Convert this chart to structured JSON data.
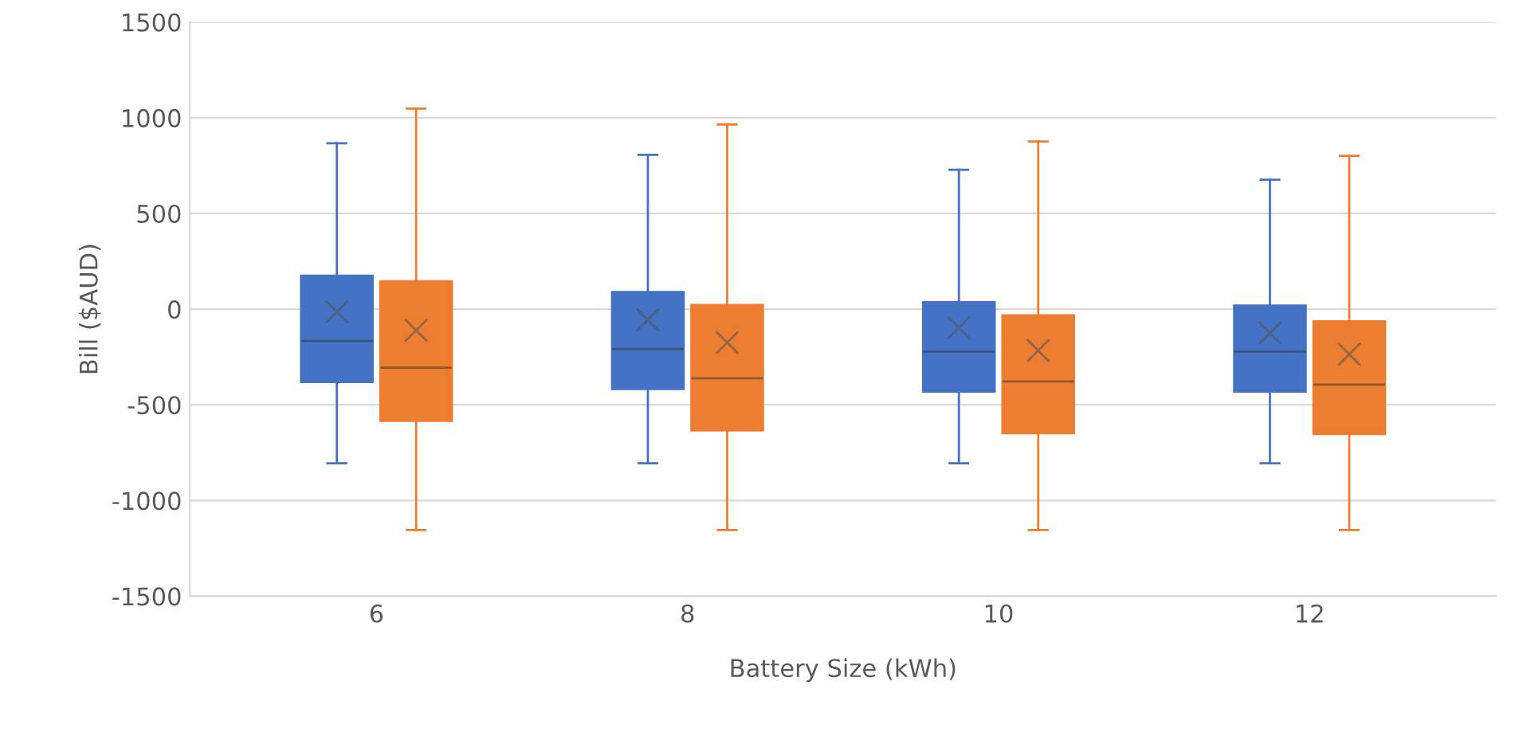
{
  "chart_data": {
    "type": "box",
    "xlabel": "Battery Size (kWh)",
    "ylabel": "Bill ($AUD)",
    "categories": [
      "6",
      "8",
      "10",
      "12"
    ],
    "ylim": [
      -1500,
      1500
    ],
    "yticks": [
      -1500,
      -1000,
      -500,
      0,
      500,
      1000,
      1500
    ],
    "grid": "y",
    "marker": "cross",
    "series": [
      {
        "color": "#4472c4",
        "boxes": [
          {
            "low": -806,
            "q1": -381,
            "median": -167,
            "q3": 175,
            "high": 867,
            "mean": -14
          },
          {
            "low": -806,
            "q1": -417,
            "median": -208,
            "q3": 89,
            "high": 806,
            "mean": -56
          },
          {
            "low": -806,
            "q1": -431,
            "median": -222,
            "q3": 36,
            "high": 728,
            "mean": -97
          },
          {
            "low": -806,
            "q1": -431,
            "median": -222,
            "q3": 19,
            "high": 676,
            "mean": -125
          }
        ]
      },
      {
        "color": "#ed7d31",
        "boxes": [
          {
            "low": -1154,
            "q1": -584,
            "median": -306,
            "q3": 145,
            "high": 1048,
            "mean": -111
          },
          {
            "low": -1154,
            "q1": -634,
            "median": -361,
            "q3": 22,
            "high": 965,
            "mean": -175
          },
          {
            "low": -1154,
            "q1": -648,
            "median": -378,
            "q3": -33,
            "high": 876,
            "mean": -217
          },
          {
            "low": -1154,
            "q1": -653,
            "median": -395,
            "q3": -64,
            "high": 801,
            "mean": -236
          }
        ]
      }
    ]
  }
}
